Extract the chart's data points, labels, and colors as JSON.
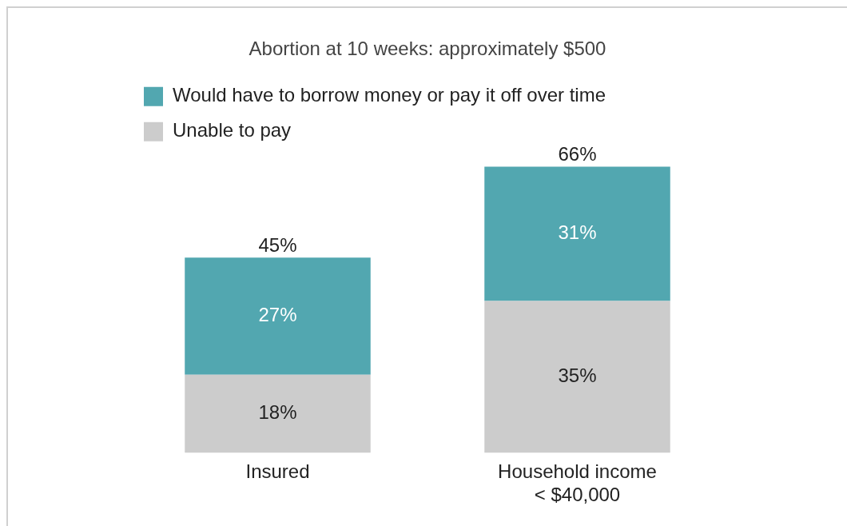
{
  "chart_data": {
    "type": "bar",
    "title": "Abortion at 10 weeks: approximately $500",
    "categories": [
      "Insured",
      "Household income < $40,000"
    ],
    "stacked": true,
    "legend": "top",
    "series": [
      {
        "name": "Unable to pay",
        "color": "#cccccc",
        "values": [
          18,
          35
        ],
        "value_labels": [
          "18%",
          "35%"
        ]
      },
      {
        "name": "Would have to borrow money or pay it off over time",
        "color": "#52a7b0",
        "values": [
          27,
          31
        ],
        "value_labels": [
          "27%",
          "31%"
        ]
      }
    ],
    "totals": [
      "45%",
      "66%"
    ]
  }
}
